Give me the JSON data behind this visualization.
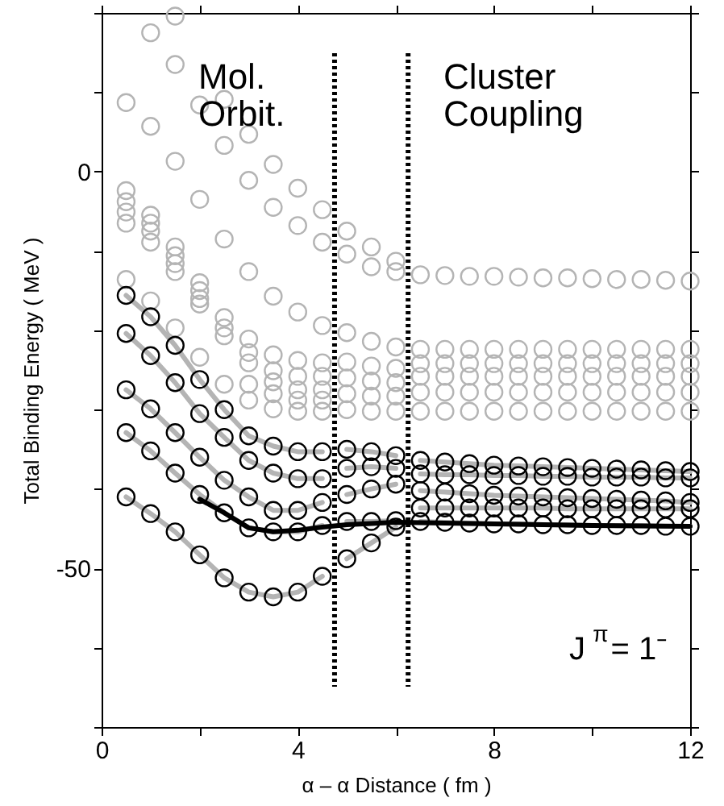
{
  "chart_data": {
    "type": "scatter",
    "xlabel": "α – α Distance ( fm )",
    "ylabel": "Total Binding Energy ( MeV )",
    "xlim": [
      0,
      12
    ],
    "xticks": [
      0,
      {
        "value": 2,
        "label": null
      },
      4,
      {
        "value": 6,
        "label": null
      },
      8,
      {
        "value": 10,
        "label": null
      },
      12
    ],
    "ylim": [
      -70,
      20
    ],
    "yticks": [
      {
        "value": -70,
        "label": null
      },
      {
        "value": -60,
        "label": null
      },
      -50,
      {
        "value": -40,
        "label": null
      },
      {
        "value": -30,
        "label": null
      },
      {
        "value": -20,
        "label": null
      },
      {
        "value": -10,
        "label": null
      },
      0,
      {
        "value": 10,
        "label": null
      },
      {
        "value": 20,
        "label": null
      }
    ],
    "grid": false,
    "marker": "circle",
    "annotations": [
      "Mol.\nOrbit.",
      "Cluster\nCoupling",
      "J$^{π}$= 1⁻"
    ],
    "ref_lines": [
      {
        "axis": "x",
        "value": 4.75,
        "line_style": "dotted",
        "color": "#000000"
      },
      {
        "axis": "x",
        "value": 6.25,
        "line_style": "dotted",
        "color": "#000000"
      }
    ],
    "series": [
      {
        "type": "scatter",
        "color": "#b4b4b4",
        "x": [
          0.5,
          0.5,
          0.5,
          0.5,
          0.5,
          0.5,
          1,
          1,
          1,
          1,
          1,
          1,
          1,
          1.5,
          1.5,
          1.5,
          1.5,
          1.5,
          1.5,
          1.5,
          1.5,
          2,
          2,
          2,
          2,
          2,
          2,
          2,
          2.5,
          2.5,
          2.5,
          2.5,
          2.5,
          2.5,
          2.5,
          3,
          3,
          3,
          3,
          3,
          3,
          3,
          3,
          3.5,
          3.5,
          3.5,
          3.5,
          3.5,
          3.5,
          3.5,
          3.5,
          4,
          4,
          4,
          4,
          4,
          4,
          4,
          4,
          4.5,
          4.5,
          4.5,
          4.5,
          4.5,
          4.5,
          4.5,
          4.5,
          5,
          5,
          5,
          5,
          5,
          5,
          5,
          5.5,
          5.5,
          5.5,
          5.5,
          5.5,
          5.5,
          5.5,
          6,
          6,
          6,
          6,
          6,
          6,
          6,
          6.5,
          6.5,
          6.5,
          6.5,
          6.5,
          6.5,
          7,
          7,
          7,
          7,
          7,
          7,
          7.5,
          7.5,
          7.5,
          7.5,
          7.5,
          7.5,
          8,
          8,
          8,
          8,
          8,
          8,
          8.5,
          8.5,
          8.5,
          8.5,
          8.5,
          8.5,
          9,
          9,
          9,
          9,
          9,
          9,
          9.5,
          9.5,
          9.5,
          9.5,
          9.5,
          9.5,
          10,
          10,
          10,
          10,
          10,
          10,
          10.5,
          10.5,
          10.5,
          10.5,
          10.5,
          10.5,
          11,
          11,
          11,
          11,
          11,
          11,
          11.5,
          11.5,
          11.5,
          11.5,
          11.5,
          11.5,
          12,
          12,
          12,
          12,
          12,
          12
        ],
        "values": [
          8.7,
          -2.4,
          -3.8,
          -5.1,
          -6.5,
          -13.6,
          17.5,
          5.7,
          -5.5,
          -6.5,
          -7.5,
          -8.9,
          -16.3,
          19.6,
          13.5,
          1.3,
          -9.5,
          -10.6,
          -11.6,
          -12.6,
          -19.7,
          8.4,
          -3.5,
          -14.0,
          -15.0,
          -16.0,
          -16.7,
          -23.4,
          9.1,
          3.3,
          -8.5,
          -18.4,
          -19.7,
          -20.7,
          -26.8,
          4.7,
          -1.1,
          -12.6,
          -21.1,
          -22.8,
          -24.1,
          -26.8,
          -28.8,
          0.9,
          -4.5,
          -15.7,
          -23.1,
          -25.1,
          -26.5,
          -28.0,
          -29.9,
          -2.1,
          -6.8,
          -17.7,
          -23.8,
          -25.8,
          -27.5,
          -28.8,
          -30.2,
          -4.8,
          -8.9,
          -19.4,
          -24.1,
          -25.8,
          -27.5,
          -28.8,
          -30.2,
          -7.5,
          -10.4,
          -20.3,
          -24.0,
          -26.0,
          -28.0,
          -30.0,
          -9.5,
          -12.0,
          -21.4,
          -24.5,
          -26.4,
          -28.3,
          -30.2,
          -11.3,
          -12.6,
          -22.1,
          -24.8,
          -26.6,
          -28.3,
          -30.2,
          -13.0,
          -22.4,
          -24.2,
          -25.8,
          -27.8,
          -30.2,
          -13.1,
          -22.4,
          -24.2,
          -25.8,
          -27.8,
          -30.2,
          -13.2,
          -22.4,
          -24.2,
          -25.8,
          -27.8,
          -30.2,
          -13.2,
          -22.4,
          -24.2,
          -25.8,
          -27.8,
          -30.2,
          -13.3,
          -22.4,
          -24.2,
          -25.8,
          -27.8,
          -30.2,
          -13.4,
          -22.4,
          -24.2,
          -25.8,
          -27.8,
          -30.2,
          -13.4,
          -22.4,
          -24.2,
          -25.8,
          -27.8,
          -30.2,
          -13.5,
          -22.4,
          -24.2,
          -25.8,
          -27.8,
          -30.2,
          -13.6,
          -22.4,
          -24.2,
          -25.8,
          -27.8,
          -30.2,
          -13.6,
          -22.4,
          -24.2,
          -25.8,
          -27.8,
          -30.2,
          -13.7,
          -22.4,
          -24.2,
          -25.8,
          -27.8,
          -30.2,
          -13.8,
          -22.4,
          -24.2,
          -25.8,
          -27.8,
          -30.2
        ]
      },
      {
        "type": "line",
        "color": "#b4b4b4",
        "marker": "none",
        "x": [
          0.5,
          1,
          1.5,
          2,
          2.5,
          3,
          3.5,
          4,
          4.5,
          4.75,
          5,
          5.5,
          6,
          6.25,
          6.5,
          7,
          7.5,
          8,
          8.5,
          9,
          9.5,
          10,
          10.5,
          11,
          11.5,
          12
        ],
        "values": [
          -15.6,
          -18.3,
          -21.9,
          -26.2,
          -30.0,
          -33.3,
          -34.6,
          -35.3,
          -35.3,
          null,
          -35.0,
          -35.3,
          -35.8,
          null,
          -36.4,
          -36.6,
          -36.8,
          -37.0,
          -37.1,
          -37.2,
          -37.3,
          -37.4,
          -37.5,
          -37.6,
          -37.7,
          -37.8
        ]
      },
      {
        "type": "line",
        "color": "#b4b4b4",
        "marker": "none",
        "x": [
          0.5,
          1,
          1.5,
          2,
          2.5,
          3,
          3.5,
          4,
          4.5,
          4.75,
          5,
          5.5,
          6,
          6.25,
          6.5,
          7,
          7.5,
          8,
          8.5,
          9,
          9.5,
          10,
          10.5,
          11,
          11.5,
          12
        ],
        "values": [
          -20.4,
          -23.2,
          -26.6,
          -30.5,
          -33.5,
          -36.4,
          -38.0,
          -38.7,
          -38.7,
          null,
          -37.4,
          -37.2,
          -37.4,
          null,
          -38.1,
          -38.2,
          -38.2,
          -38.3,
          -38.3,
          -38.4,
          -38.4,
          -38.5,
          -38.5,
          -38.5,
          -38.6,
          -38.6
        ]
      },
      {
        "type": "line",
        "color": "#b4b4b4",
        "marker": "none",
        "x": [
          0.5,
          1,
          1.5,
          2,
          2.5,
          3,
          3.5,
          4,
          4.5,
          4.75,
          5,
          5.5,
          6,
          6.25,
          6.5,
          7,
          7.5,
          8,
          8.5,
          9,
          9.5,
          10,
          10.5,
          11,
          11.5,
          12
        ],
        "values": [
          -27.5,
          -29.9,
          -32.9,
          -36.0,
          -38.9,
          -41.0,
          -42.7,
          -42.7,
          -41.7,
          null,
          -40.7,
          -40.0,
          -39.4,
          null,
          -40.2,
          -40.4,
          -40.6,
          -40.8,
          -40.9,
          -41.0,
          -41.1,
          -41.2,
          -41.3,
          -41.4,
          -41.5,
          -41.7
        ]
      },
      {
        "type": "line",
        "color": "#b4b4b4",
        "marker": "none",
        "x": [
          0.5,
          1,
          1.5,
          2,
          2.5,
          3,
          3.5,
          4,
          4.5,
          4.75,
          5,
          5.5,
          6,
          6.25,
          6.5,
          7,
          7.5,
          8,
          8.5,
          9,
          9.5,
          10,
          10.5,
          11,
          11.5,
          12
        ],
        "values": [
          -32.9,
          -35.2,
          -38.0,
          -40.7,
          -43.0,
          -44.9,
          -45.4,
          -45.4,
          -44.6,
          null,
          -44.1,
          -44.1,
          -44.0,
          null,
          -42.4,
          -42.4,
          -42.4,
          -42.4,
          -42.4,
          -42.4,
          -42.5,
          -42.5,
          -42.5,
          -42.5,
          -42.5,
          -42.5
        ]
      },
      {
        "type": "line",
        "color": "#b4b4b4",
        "marker": "none",
        "x": [
          0.5,
          1,
          1.5,
          2,
          2.5,
          3,
          3.5,
          4,
          4.5,
          4.75,
          5,
          5.5,
          6,
          6.25,
          6.5,
          7,
          7.5,
          8,
          8.5,
          9,
          9.5,
          10,
          10.5,
          11,
          11.5,
          12
        ],
        "values": [
          -41.0,
          -43.1,
          -45.4,
          -48.3,
          -51.2,
          -53.0,
          -53.6,
          -53.0,
          -51.0,
          null,
          -48.8,
          -46.8,
          -44.8,
          null,
          -44.1,
          -44.2,
          -44.3,
          -44.4,
          -44.4,
          -44.5,
          -44.5,
          -44.6,
          -44.6,
          -44.6,
          -44.7,
          -44.7
        ]
      },
      {
        "type": "line",
        "color": "#000000",
        "marker": "none",
        "x": [
          2,
          2.5,
          3,
          3.5,
          4,
          4.5,
          5,
          6,
          7,
          8,
          10,
          12
        ],
        "values": [
          -41.3,
          -43.0,
          -44.9,
          -45.4,
          -45.2,
          -44.8,
          -44.5,
          -44.2,
          -44.3,
          -44.4,
          -44.6,
          -44.7
        ]
      },
      {
        "type": "scatter",
        "color": "#000000",
        "x": [
          0.5,
          1,
          1.5,
          2,
          2.5,
          3,
          3.5,
          4,
          4.5,
          5,
          5.5,
          6,
          6.5,
          7,
          7.5,
          8,
          8.5,
          9,
          9.5,
          10,
          10.5,
          11,
          11.5,
          12,
          0.5,
          1,
          1.5,
          2,
          2.5,
          3,
          3.5,
          4,
          4.5,
          5,
          5.5,
          6,
          6.5,
          7,
          7.5,
          8,
          8.5,
          9,
          9.5,
          10,
          10.5,
          11,
          11.5,
          12,
          0.5,
          1,
          1.5,
          2,
          2.5,
          3,
          3.5,
          4,
          4.5,
          5,
          5.5,
          6,
          6.5,
          7,
          7.5,
          8,
          8.5,
          9,
          9.5,
          10,
          10.5,
          11,
          11.5,
          12,
          0.5,
          1,
          1.5,
          2,
          2.5,
          3,
          3.5,
          4,
          4.5,
          5,
          5.5,
          6,
          6.5,
          7,
          7.5,
          8,
          8.5,
          9,
          9.5,
          10,
          10.5,
          11,
          11.5,
          12,
          0.5,
          1,
          1.5,
          2,
          2.5,
          3,
          3.5,
          4,
          4.5,
          5,
          5.5,
          6,
          6.5,
          7,
          7.5,
          8,
          8.5,
          9,
          9.5,
          10,
          10.5,
          11,
          11.5,
          12
        ],
        "values": [
          -15.6,
          -18.3,
          -21.9,
          -26.2,
          -30.0,
          -33.3,
          -34.6,
          -35.3,
          -35.3,
          -35.0,
          -35.3,
          -35.8,
          -36.4,
          -36.6,
          -36.8,
          -37.0,
          -37.1,
          -37.2,
          -37.3,
          -37.4,
          -37.5,
          -37.6,
          -37.7,
          -37.8,
          -20.4,
          -23.2,
          -26.6,
          -30.5,
          -33.5,
          -36.4,
          -38.0,
          -38.7,
          -38.7,
          -37.4,
          -37.2,
          -37.4,
          -38.1,
          -38.2,
          -38.2,
          -38.3,
          -38.3,
          -38.4,
          -38.4,
          -38.5,
          -38.5,
          -38.5,
          -38.6,
          -38.6,
          -27.5,
          -29.9,
          -32.9,
          -36.0,
          -38.9,
          -41.0,
          -42.7,
          -42.7,
          -41.7,
          -40.7,
          -40.0,
          -39.4,
          -40.2,
          -40.4,
          -40.6,
          -40.8,
          -40.9,
          -41.0,
          -41.1,
          -41.2,
          -41.3,
          -41.4,
          -41.5,
          -41.7,
          -32.9,
          -35.2,
          -38.0,
          -40.7,
          -43.0,
          -44.9,
          -45.4,
          -45.4,
          -44.6,
          -44.1,
          -44.1,
          -44.0,
          -42.4,
          -42.4,
          -42.4,
          -42.4,
          -42.4,
          -42.4,
          -42.5,
          -42.5,
          -42.5,
          -42.5,
          -42.5,
          -42.5,
          -41.0,
          -43.1,
          -45.4,
          -48.3,
          -51.2,
          -53.0,
          -53.6,
          -53.0,
          -51.0,
          -48.8,
          -46.8,
          -44.8,
          -44.1,
          -44.2,
          -44.3,
          -44.4,
          -44.4,
          -44.5,
          -44.5,
          -44.6,
          -44.6,
          -44.6,
          -44.7,
          -44.7
        ]
      }
    ]
  }
}
